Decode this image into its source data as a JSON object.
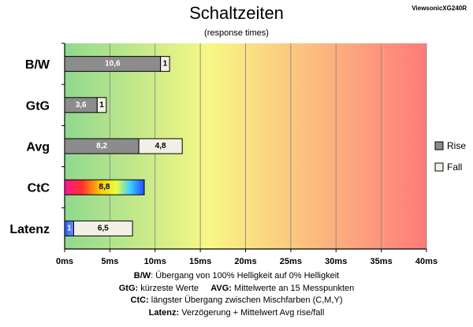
{
  "chart_data": {
    "type": "bar",
    "orientation": "horizontal",
    "stacked": true,
    "title": "Schaltzeiten",
    "subtitle": "(response times)",
    "brand": "ViewsonicXG240R",
    "categories": [
      "B/W",
      "GtG",
      "Avg",
      "CtC",
      "Latenz"
    ],
    "series": [
      {
        "name": "Rise",
        "color": "#8c8c8c",
        "values": [
          10.6,
          3.6,
          8.2,
          null,
          null
        ]
      },
      {
        "name": "Fall",
        "color": "#f2f0e6",
        "values": [
          1,
          1,
          4.8,
          null,
          6.5
        ]
      }
    ],
    "ctc_value": 8.8,
    "latency_base": 1,
    "data_labels": {
      "B/W": [
        "10,6",
        "1"
      ],
      "GtG": [
        "3,6",
        "1"
      ],
      "Avg": [
        "8,2",
        "4,8"
      ],
      "CtC": [
        "8,8"
      ],
      "Latenz": [
        "1",
        "6,5"
      ]
    },
    "x_ticks": [
      "0ms",
      "5ms",
      "10ms",
      "15ms",
      "20ms",
      "25ms",
      "30ms",
      "35ms",
      "40ms"
    ],
    "xlim": [
      0,
      40
    ],
    "grid": true,
    "legend_position": "right",
    "background_gradient": [
      "#8fd98f",
      "#f8f884",
      "#ff7a7a"
    ]
  },
  "notes": [
    {
      "label": "B/W",
      "text": ":  Übergang von 100% Helligkeit auf 0% Helligkeit"
    },
    {
      "label": "GtG:",
      "text": " kürzeste  Werte",
      "label2": "AVG:",
      "text2": " Mittelwerte  an 15 Messpunkten"
    },
    {
      "label": "CtC:",
      "text": " längster Übergang  zwischen Mischfarben  (C,M,Y)"
    },
    {
      "label": "Latenz:",
      "text": " Verzögerung  + Mittelwert  Avg rise/fall"
    }
  ]
}
